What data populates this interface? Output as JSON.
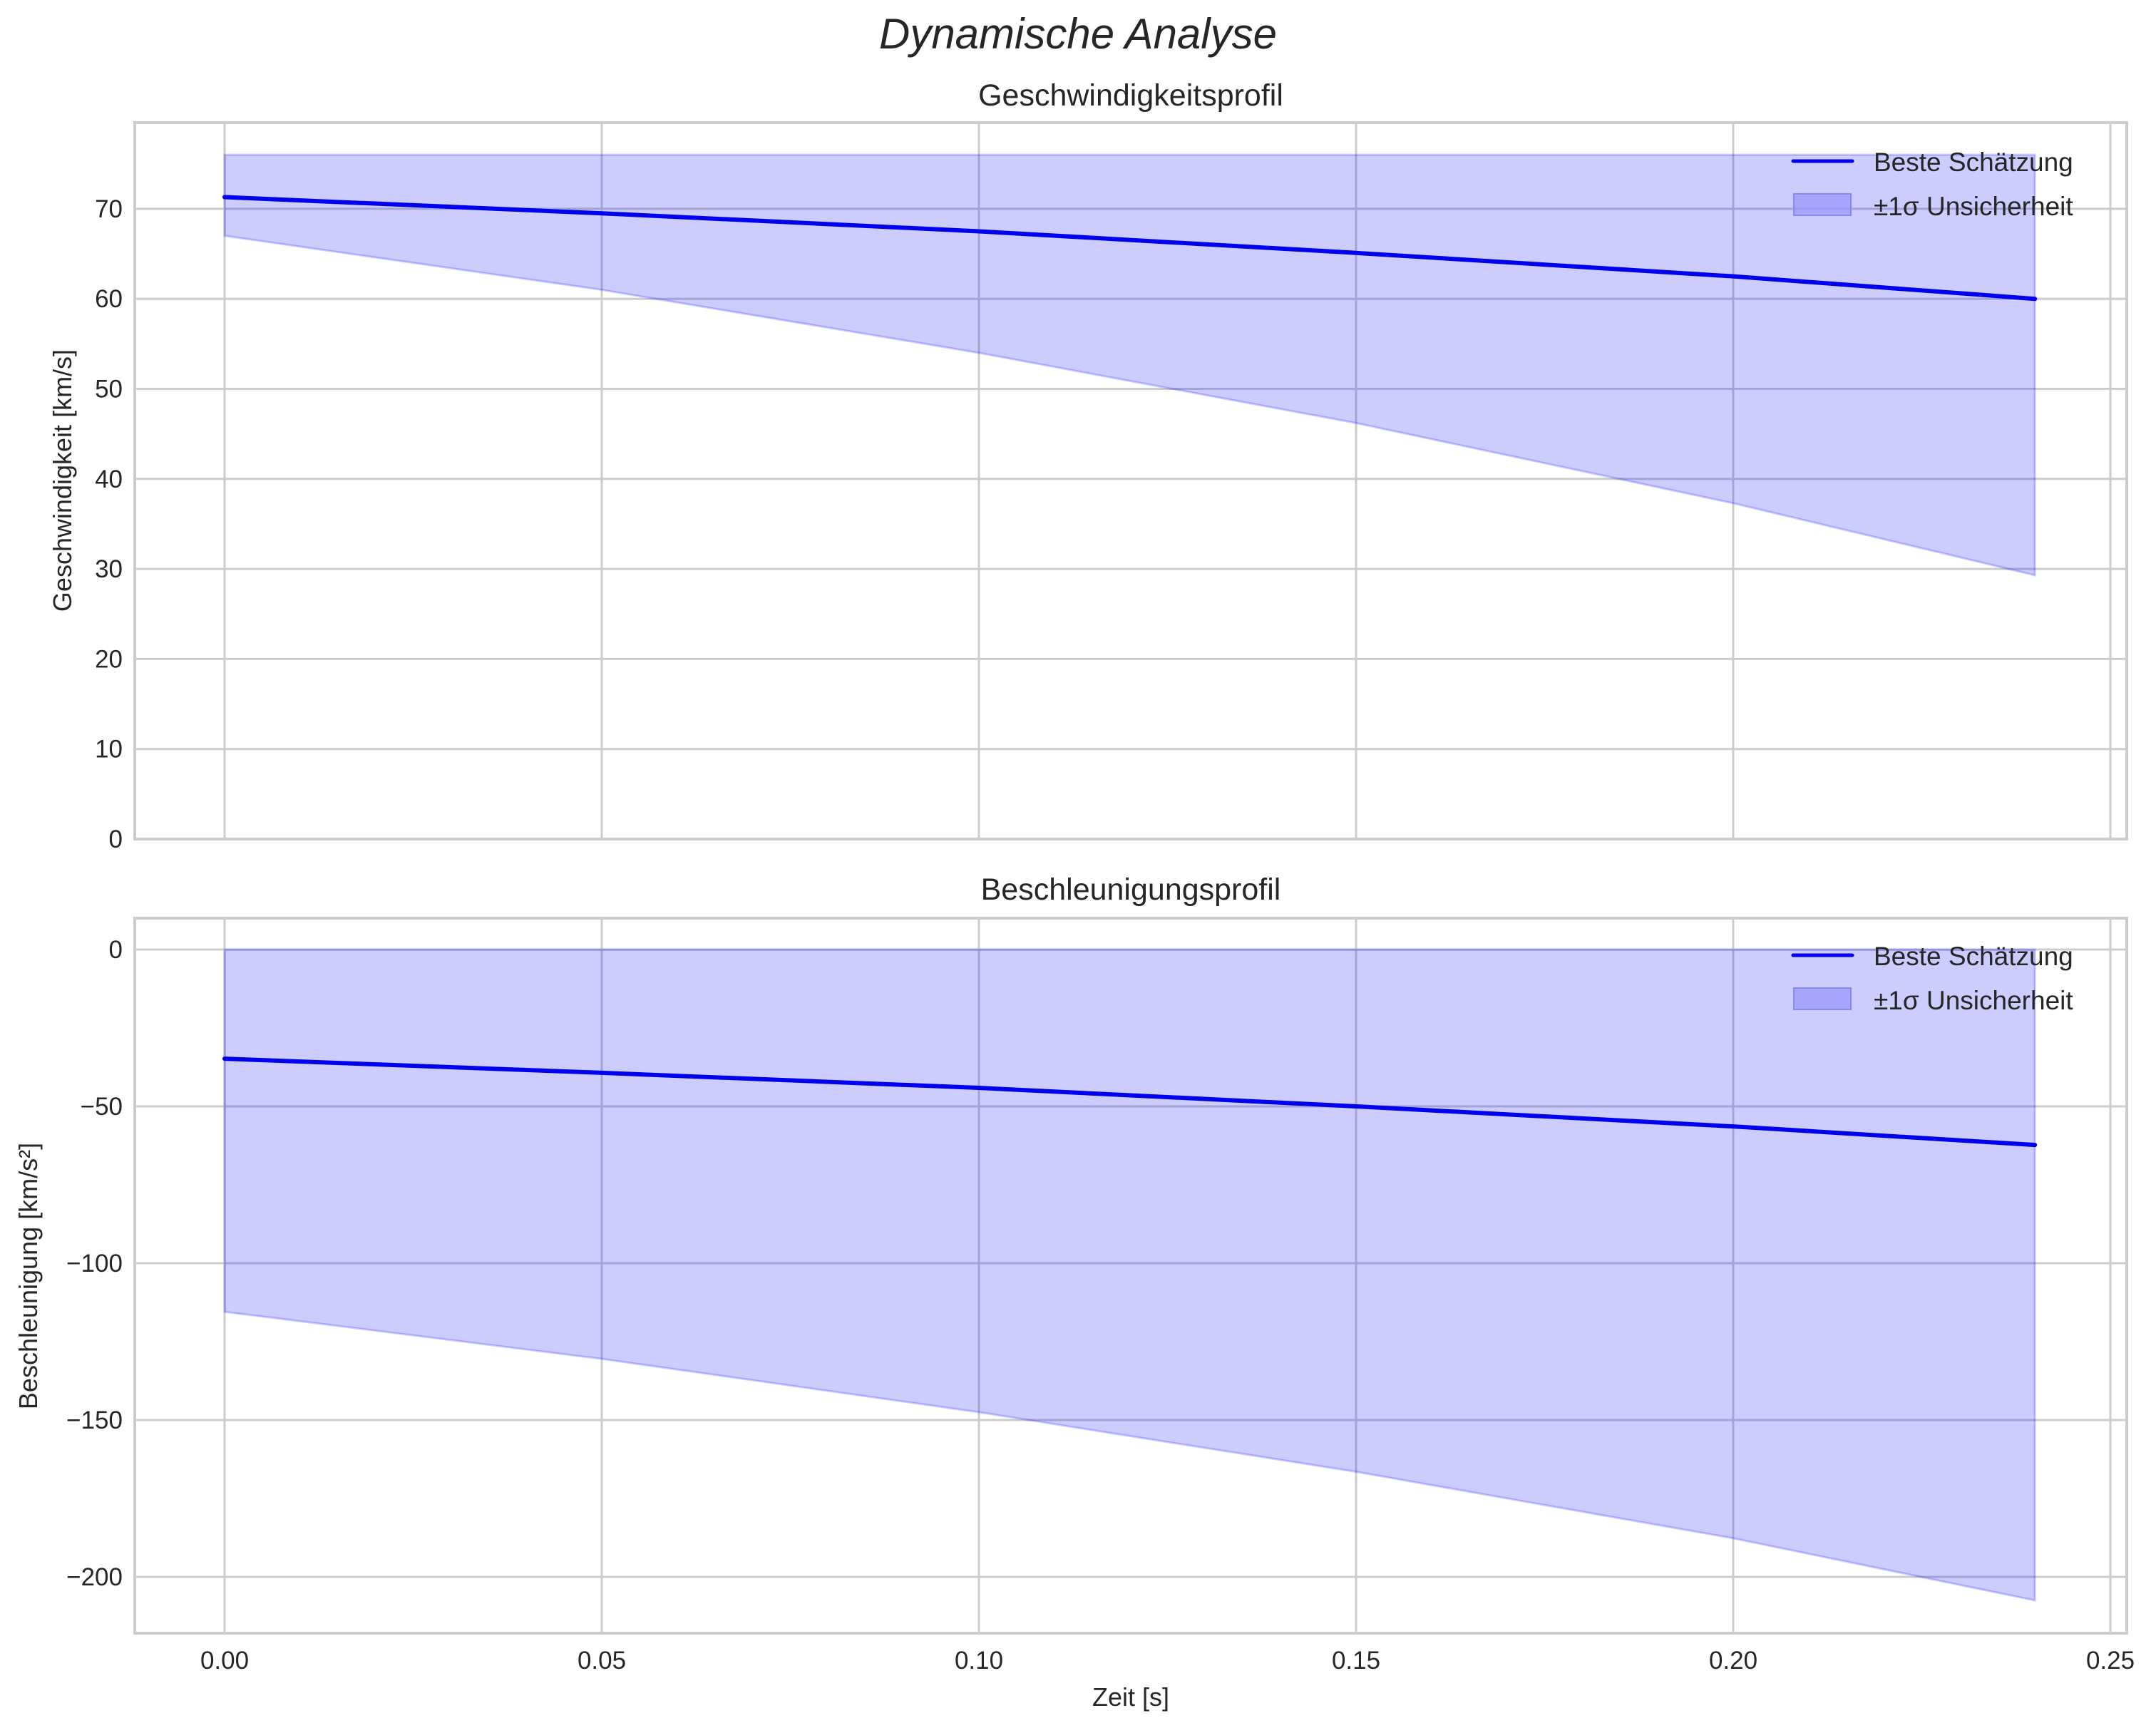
{
  "figure": {
    "suptitle": "Dynamische Analyse",
    "xlabel": "Zeit [s]"
  },
  "colors": {
    "line": "#0000ee",
    "band_fill": "#ccccfa",
    "band_edge": "#9999ee",
    "grid": "#cccccc",
    "spine": "#cccccc",
    "text": "#262626"
  },
  "legend": {
    "line_label": "Beste Schätzung",
    "band_label": "±1σ Unsicherheit"
  },
  "chart_data": [
    {
      "type": "line",
      "title": "Geschwindigkeitsprofil",
      "xlabel": "",
      "ylabel": "Geschwindigkeit [km/s]",
      "xlim": [
        -0.012,
        0.252
      ],
      "ylim": [
        0,
        79.6
      ],
      "grid": true,
      "legend_position": "upper right",
      "x": [
        0.0,
        0.05,
        0.1,
        0.15,
        0.2,
        0.24
      ],
      "x_ticks": [
        "0.00",
        "0.05",
        "0.10",
        "0.15",
        "0.20",
        "0.25"
      ],
      "y_ticks": [
        "0",
        "10",
        "20",
        "30",
        "40",
        "50",
        "60",
        "70"
      ],
      "series": [
        {
          "name": "Beste Schätzung",
          "values": [
            71.3,
            69.5,
            67.5,
            65.1,
            62.5,
            60.0
          ]
        },
        {
          "name": "±1σ Unsicherheit (oben)",
          "values": [
            76.0,
            76.0,
            76.0,
            76.0,
            76.0,
            76.0
          ]
        },
        {
          "name": "±1σ Unsicherheit (unten)",
          "values": [
            67.0,
            61.0,
            54.0,
            46.2,
            37.3,
            29.3
          ]
        }
      ]
    },
    {
      "type": "line",
      "title": "Beschleunigungsprofil",
      "xlabel": "Zeit [s]",
      "ylabel": "Beschleunigung [km/s²]",
      "xlim": [
        -0.012,
        0.252
      ],
      "ylim": [
        -218,
        10
      ],
      "grid": true,
      "legend_position": "upper right",
      "x": [
        0.0,
        0.05,
        0.1,
        0.15,
        0.2,
        0.24
      ],
      "x_ticks": [
        "0.00",
        "0.05",
        "0.10",
        "0.15",
        "0.20",
        "0.25"
      ],
      "y_ticks": [
        "0",
        "−50",
        "−100",
        "−150",
        "−200"
      ],
      "series": [
        {
          "name": "Beste Schätzung",
          "values": [
            -34.8,
            -39.3,
            -44.1,
            -50.0,
            -56.4,
            -62.3
          ]
        },
        {
          "name": "±1σ Unsicherheit (oben)",
          "values": [
            0,
            0,
            0,
            0,
            0,
            0
          ]
        },
        {
          "name": "±1σ Unsicherheit (unten)",
          "values": [
            -115.5,
            -130.5,
            -147.5,
            -166.5,
            -187.7,
            -207.5
          ]
        }
      ]
    }
  ]
}
